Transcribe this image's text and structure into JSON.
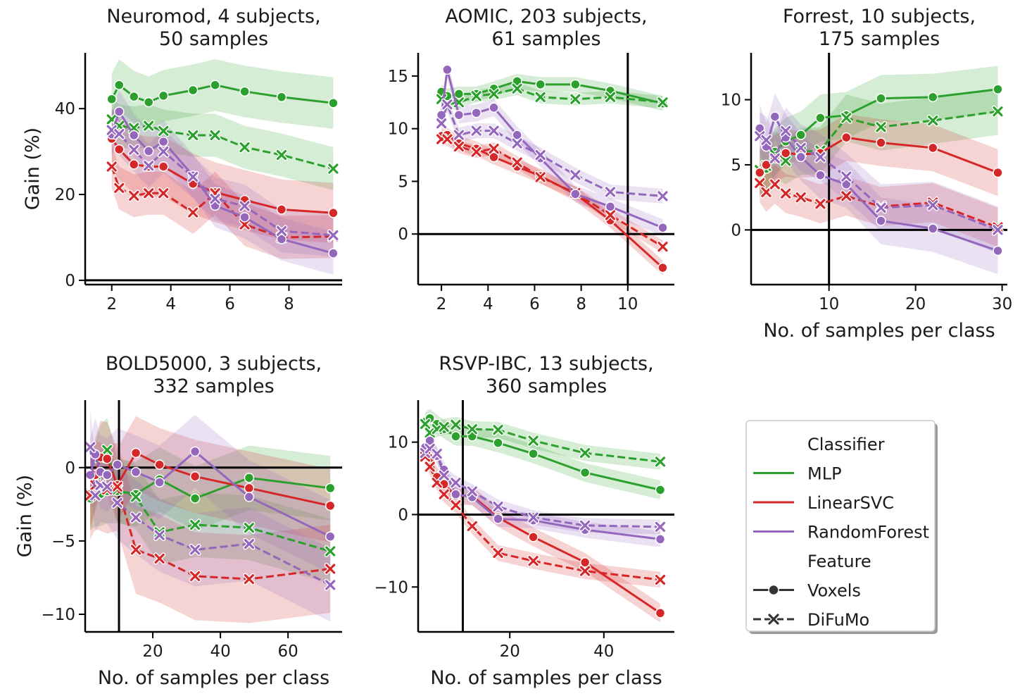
{
  "colors": {
    "MLP": "#2ca02c",
    "LinearSVC": "#d62728",
    "RandomForest": "#9467bd"
  },
  "chart_data": [
    {
      "type": "line",
      "title": "Neuromod, 4 subjects,\n50 samples",
      "xlabel": "",
      "ylabel": "Gain (%)",
      "xlim": [
        1.1,
        9.8
      ],
      "ylim": [
        -1,
        53
      ],
      "xticks": [
        2,
        4,
        6,
        8
      ],
      "yticks": [
        0,
        20,
        40
      ],
      "hlines": [
        0
      ],
      "vlines": [],
      "x": [
        2,
        2.25,
        2.75,
        3.25,
        3.75,
        4.75,
        5.5,
        6.5,
        7.75,
        9.5
      ],
      "series": [
        {
          "classifier": "MLP",
          "feature": "Voxels",
          "y": [
            42.2,
            45.5,
            42.8,
            41.5,
            43.0,
            44.3,
            45.5,
            44.0,
            42.7,
            41.3
          ],
          "band": 6
        },
        {
          "classifier": "MLP",
          "feature": "DiFuMo",
          "y": [
            37.5,
            36.0,
            35.5,
            36.0,
            34.8,
            33.8,
            33.8,
            31.0,
            29.2,
            26.0
          ],
          "band": 5
        },
        {
          "classifier": "LinearSVC",
          "feature": "Voxels",
          "y": [
            33.0,
            30.5,
            27.0,
            26.5,
            26.5,
            22.5,
            20.5,
            18.7,
            16.5,
            15.7
          ],
          "band": 7
        },
        {
          "classifier": "LinearSVC",
          "feature": "DiFuMo",
          "y": [
            26.5,
            21.5,
            19.7,
            20.3,
            20.3,
            15.8,
            20.3,
            13.0,
            10.0,
            10.2
          ],
          "band": 5
        },
        {
          "classifier": "RandomForest",
          "feature": "Voxels",
          "y": [
            34.0,
            39.3,
            33.8,
            30.1,
            32.3,
            24.4,
            17.4,
            14.7,
            9.6,
            6.3
          ],
          "band": 5
        },
        {
          "classifier": "RandomForest",
          "feature": "DiFuMo",
          "y": [
            35.0,
            34.1,
            30.4,
            26.7,
            30.0,
            24.1,
            19.0,
            17.3,
            11.5,
            10.5
          ],
          "band": 5
        }
      ]
    },
    {
      "type": "line",
      "title": "AOMIC, 203 subjects,\n61 samples",
      "xlabel": "",
      "ylabel": "",
      "xlim": [
        1.0,
        12.0
      ],
      "ylim": [
        -4.8,
        17.2
      ],
      "xticks": [
        2,
        4,
        6,
        8,
        10
      ],
      "yticks": [
        0,
        5,
        10,
        15
      ],
      "hlines": [
        0
      ],
      "vlines": [
        10
      ],
      "x": [
        2,
        2.25,
        2.75,
        3.5,
        4.25,
        5.25,
        6.25,
        7.75,
        9.25,
        11.5
      ],
      "series": [
        {
          "classifier": "MLP",
          "feature": "Voxels",
          "y": [
            13.5,
            13.1,
            13.3,
            13.3,
            13.8,
            14.5,
            14.2,
            14.2,
            13.6,
            12.4
          ],
          "band": 0.7
        },
        {
          "classifier": "MLP",
          "feature": "DiFuMo",
          "y": [
            12.8,
            12.3,
            12.5,
            13.1,
            13.3,
            13.8,
            13.0,
            12.8,
            13.0,
            12.5
          ],
          "band": 0.6
        },
        {
          "classifier": "LinearSVC",
          "feature": "Voxels",
          "y": [
            9.3,
            9.4,
            8.6,
            8.1,
            7.3,
            6.4,
            5.5,
            3.8,
            1.3,
            -3.2
          ],
          "band": 0.7
        },
        {
          "classifier": "LinearSVC",
          "feature": "DiFuMo",
          "y": [
            9.0,
            9.0,
            8.3,
            7.8,
            8.1,
            6.8,
            5.4,
            3.9,
            1.8,
            -1.2
          ],
          "band": 0.6
        },
        {
          "classifier": "RandomForest",
          "feature": "Voxels",
          "y": [
            11.3,
            15.6,
            11.3,
            11.5,
            12.0,
            9.4,
            7.2,
            3.8,
            2.6,
            0.6
          ],
          "band": 0.8
        },
        {
          "classifier": "RandomForest",
          "feature": "DiFuMo",
          "y": [
            10.5,
            12.3,
            9.4,
            9.8,
            9.8,
            8.6,
            7.5,
            5.6,
            4.0,
            3.6
          ],
          "band": 0.7
        }
      ]
    },
    {
      "type": "line",
      "title": "Forrest, 10 subjects,\n175 samples",
      "xlabel": "No. of samples per class",
      "ylabel": "",
      "xlim": [
        1.0,
        30.6
      ],
      "ylim": [
        -4.2,
        13.6
      ],
      "xticks": [
        10,
        20,
        30
      ],
      "yticks": [
        0,
        5,
        10
      ],
      "hlines": [
        0
      ],
      "vlines": [
        10
      ],
      "x": [
        2,
        2.75,
        3.75,
        5,
        6.75,
        9,
        12,
        16,
        22,
        29.5
      ],
      "series": [
        {
          "classifier": "MLP",
          "feature": "Voxels",
          "y": [
            4.3,
            4.7,
            6.0,
            6.8,
            7.3,
            8.6,
            8.8,
            10.1,
            10.2,
            10.8
          ],
          "band": 1.8
        },
        {
          "classifier": "MLP",
          "feature": "DiFuMo",
          "y": [
            4.6,
            4.9,
            5.8,
            5.3,
            6.0,
            6.1,
            8.6,
            7.9,
            8.4,
            9.1
          ],
          "band": 1.8
        },
        {
          "classifier": "LinearSVC",
          "feature": "Voxels",
          "y": [
            4.4,
            5.0,
            5.5,
            5.9,
            5.8,
            5.9,
            7.1,
            6.7,
            6.3,
            4.4
          ],
          "band": 1.8
        },
        {
          "classifier": "LinearSVC",
          "feature": "DiFuMo",
          "y": [
            3.6,
            2.9,
            3.5,
            2.8,
            2.5,
            2.0,
            2.6,
            1.8,
            2.1,
            0.2
          ],
          "band": 1.5
        },
        {
          "classifier": "RandomForest",
          "feature": "Voxels",
          "y": [
            7.8,
            6.4,
            8.7,
            7.1,
            5.6,
            4.2,
            3.5,
            0.7,
            0.1,
            -1.6
          ],
          "band": 1.8
        },
        {
          "classifier": "RandomForest",
          "feature": "DiFuMo",
          "y": [
            7.2,
            6.9,
            5.5,
            7.6,
            6.3,
            5.6,
            4.1,
            1.7,
            1.9,
            0.0
          ],
          "band": 1.8
        }
      ]
    },
    {
      "type": "line",
      "title": "BOLD5000, 3 subjects,\n332 samples",
      "xlabel": "No. of samples per class",
      "ylabel": "Gain (%)",
      "xlim": [
        0,
        76
      ],
      "ylim": [
        -11.2,
        4.6
      ],
      "xticks": [
        20,
        40,
        60
      ],
      "yticks": [
        -10,
        -5,
        0
      ],
      "hlines": [
        0
      ],
      "vlines": [
        10
      ],
      "x": [
        1.5,
        3,
        4.5,
        6.5,
        9.5,
        15,
        22,
        32.5,
        48.5,
        72.5
      ],
      "series": [
        {
          "classifier": "MLP",
          "feature": "Voxels",
          "y": [
            -2.1,
            -1.8,
            -1.8,
            -1.6,
            -1.6,
            -1.8,
            -0.8,
            -2.1,
            -0.7,
            -1.4
          ],
          "band": 2.2
        },
        {
          "classifier": "MLP",
          "feature": "DiFuMo",
          "y": [
            -1.8,
            -0.5,
            0.7,
            1.2,
            -1.5,
            -2.0,
            -4.4,
            -3.9,
            -4.1,
            -5.7
          ],
          "band": 2.2
        },
        {
          "classifier": "LinearSVC",
          "feature": "Voxels",
          "y": [
            -1.8,
            -0.5,
            0.7,
            0.6,
            -1.2,
            1.0,
            0.2,
            -0.6,
            -1.4,
            -2.6
          ],
          "band": 2.5
        },
        {
          "classifier": "LinearSVC",
          "feature": "DiFuMo",
          "y": [
            -1.9,
            -1.2,
            -1.3,
            -1.5,
            -1.3,
            -5.6,
            -6.2,
            -7.4,
            -7.6,
            -6.9
          ],
          "band": 3.0
        },
        {
          "classifier": "RandomForest",
          "feature": "Voxels",
          "y": [
            -0.5,
            0.9,
            -0.3,
            -0.5,
            0.2,
            -0.3,
            -1.0,
            1.1,
            -2.0,
            -4.7
          ],
          "band": 2.5
        },
        {
          "classifier": "RandomForest",
          "feature": "DiFuMo",
          "y": [
            1.4,
            -1.9,
            -1.2,
            -1.3,
            -2.4,
            -3.4,
            -4.6,
            -5.6,
            -5.2,
            -8.0
          ],
          "band": 2.5
        }
      ]
    },
    {
      "type": "line",
      "title": "RSVP-IBC, 13 subjects,\n360 samples",
      "xlabel": "No. of samples per class",
      "ylabel": "",
      "xlim": [
        0.5,
        55
      ],
      "ylim": [
        -16.2,
        15.8
      ],
      "xticks": [
        20,
        40
      ],
      "yticks": [
        -10,
        0,
        10
      ],
      "hlines": [
        0
      ],
      "vlines": [
        10
      ],
      "x": [
        2,
        3,
        4.5,
        6,
        8.5,
        12,
        17.5,
        25,
        36,
        52
      ],
      "series": [
        {
          "classifier": "MLP",
          "feature": "Voxels",
          "y": [
            12.8,
            13.3,
            12.5,
            11.8,
            10.8,
            10.8,
            9.9,
            8.4,
            5.8,
            3.4
          ],
          "band": 1.3
        },
        {
          "classifier": "MLP",
          "feature": "DiFuMo",
          "y": [
            12.5,
            11.3,
            11.8,
            12.1,
            12.4,
            11.8,
            11.7,
            10.2,
            8.5,
            7.3
          ],
          "band": 1.1
        },
        {
          "classifier": "LinearSVC",
          "feature": "Voxels",
          "y": [
            9.0,
            7.8,
            5.2,
            4.2,
            2.6,
            2.6,
            -0.4,
            -3.1,
            -6.6,
            -13.6
          ],
          "band": 1.3
        },
        {
          "classifier": "LinearSVC",
          "feature": "DiFuMo",
          "y": [
            8.0,
            6.6,
            4.4,
            2.8,
            1.3,
            -1.6,
            -5.3,
            -6.4,
            -7.8,
            -9.0
          ],
          "band": 1.1
        },
        {
          "classifier": "RandomForest",
          "feature": "Voxels",
          "y": [
            9.3,
            10.2,
            8.1,
            6.2,
            2.8,
            2.4,
            -0.6,
            -0.8,
            -2.1,
            -3.4
          ],
          "band": 1.1
        },
        {
          "classifier": "RandomForest",
          "feature": "DiFuMo",
          "y": [
            8.5,
            9.1,
            8.4,
            5.4,
            4.4,
            3.2,
            1.1,
            -0.4,
            -1.5,
            -1.7
          ],
          "band": 1.0
        }
      ]
    }
  ],
  "legend": {
    "placement": "bottom-right",
    "hue_title": "Classifier",
    "style_title": "Feature",
    "classifiers": [
      "MLP",
      "LinearSVC",
      "RandomForest"
    ],
    "features": [
      "Voxels",
      "DiFuMo"
    ]
  }
}
